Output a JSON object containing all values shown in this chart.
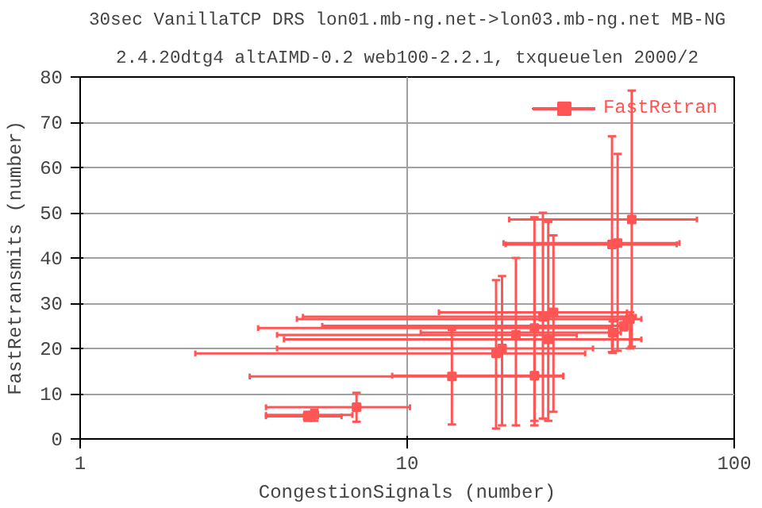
{
  "chart_data": {
    "type": "scatter",
    "title": "30sec VanillaTCP DRS lon01.mb-ng.net->lon03.mb-ng.net MB-NG",
    "subtitle": "2.4.20dtg4 altAIMD-0.2 web100-2.2.1, txqueuelen 2000/2",
    "xlabel": "CongestionSignals (number)",
    "ylabel": "FastRetransmits (number)",
    "log": "x",
    "xlim": [
      1,
      100
    ],
    "xticks": [
      1,
      10,
      100
    ],
    "ylim": [
      0,
      80
    ],
    "yticks": [
      0,
      10,
      20,
      30,
      40,
      50,
      60,
      70,
      80
    ],
    "grid": true,
    "legend": "top right",
    "marker": "square",
    "series": [
      {
        "name": "FastRetran",
        "color": "#ff5555",
        "x": [
          4.96,
          5.2,
          7.0,
          13.7,
          18.7,
          19.5,
          21.5,
          24.5,
          26,
          27,
          28,
          24.5,
          42.5,
          46,
          48,
          42.3,
          44,
          48.6
        ],
        "values": [
          5.0,
          5.3,
          7.0,
          13.8,
          18.9,
          20,
          23,
          24.5,
          27,
          22,
          28,
          14,
          23.5,
          25,
          26.5,
          43,
          43.3,
          48.5
        ],
        "xerrors": [
          [
            3.7,
            6.3
          ],
          [
            3.7,
            6.8
          ],
          [
            3.7,
            10.2
          ],
          [
            3.3,
            30
          ],
          [
            2.25,
            35
          ],
          [
            4.0,
            37
          ],
          [
            4.0,
            33
          ],
          [
            3.5,
            42
          ],
          [
            4.8,
            50
          ],
          [
            4.2,
            52
          ],
          [
            12.5,
            47
          ],
          [
            9,
            30
          ],
          [
            11,
            45
          ],
          [
            5.5,
            47
          ],
          [
            4.6,
            52
          ],
          [
            20,
            66.7
          ],
          [
            19.7,
            68
          ],
          [
            20.5,
            76.9
          ]
        ],
        "errors": [
          [
            4.0,
            6.0
          ],
          [
            4.0,
            6.5
          ],
          [
            3.8,
            10.2
          ],
          [
            3.2,
            24.1
          ],
          [
            2.3,
            35.1
          ],
          [
            3,
            36
          ],
          [
            3,
            40
          ],
          [
            4,
            49
          ],
          [
            4.5,
            50
          ],
          [
            4,
            48
          ],
          [
            6,
            45
          ],
          [
            3,
            43
          ],
          [
            19,
            26
          ],
          [
            24,
            27
          ],
          [
            20,
            28
          ],
          [
            19.2,
            66.9
          ],
          [
            19.5,
            63
          ],
          [
            20.4,
            77
          ]
        ]
      }
    ]
  }
}
